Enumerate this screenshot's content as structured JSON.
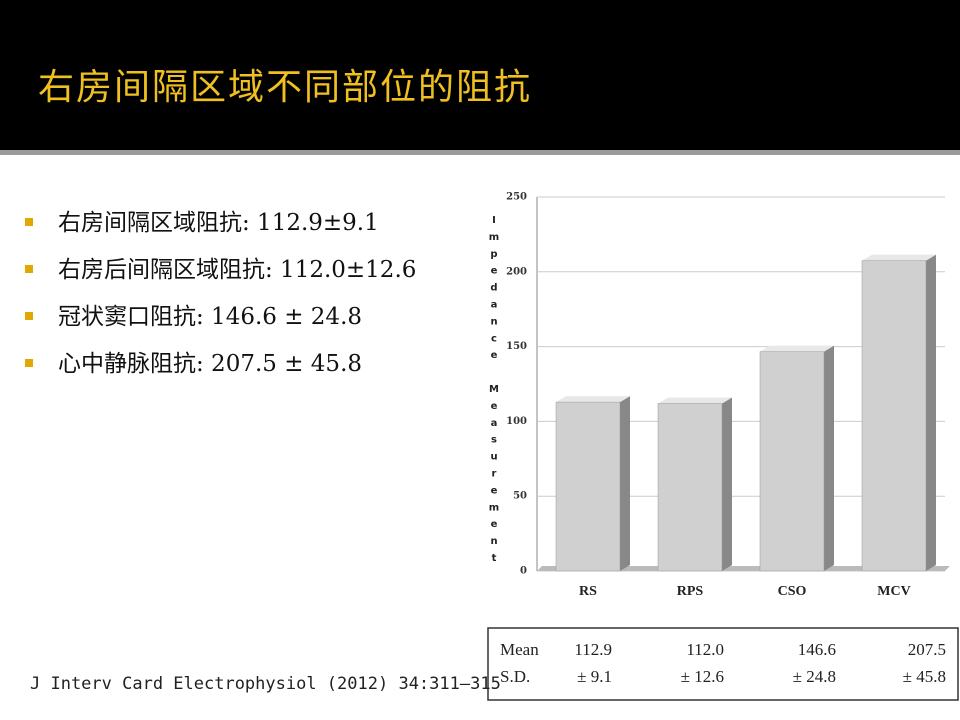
{
  "slide": {
    "title": "右房间隔区域不同部位的阻抗",
    "bullets": [
      "右房间隔区域阻抗: 112.9±9.1",
      "右房后间隔区域阻抗: 112.0±12.6",
      "冠状窦口阻抗:  146.6 ± 24.8",
      "心中静脉阻抗:  207.5 ± 45.8"
    ],
    "citation": "J Interv Card Electrophysiol (2012) 34:311–315"
  },
  "chart_data": {
    "type": "bar",
    "y_label": "Impedance Measurement",
    "categories": [
      "RS",
      "RPS",
      "CSO",
      "MCV"
    ],
    "values": [
      112.9,
      112.0,
      146.6,
      207.5
    ],
    "color": "#d0d0d0",
    "ylim": [
      0,
      250
    ],
    "yticks": [
      0,
      50,
      100,
      150,
      200,
      250
    ],
    "grid": true
  },
  "table": {
    "rows": [
      [
        "Mean",
        "112.9",
        "112.0",
        "146.6",
        "207.5"
      ],
      [
        "S.D.",
        "± 9.1",
        "± 12.6",
        "± 24.8",
        "± 45.8"
      ]
    ]
  }
}
